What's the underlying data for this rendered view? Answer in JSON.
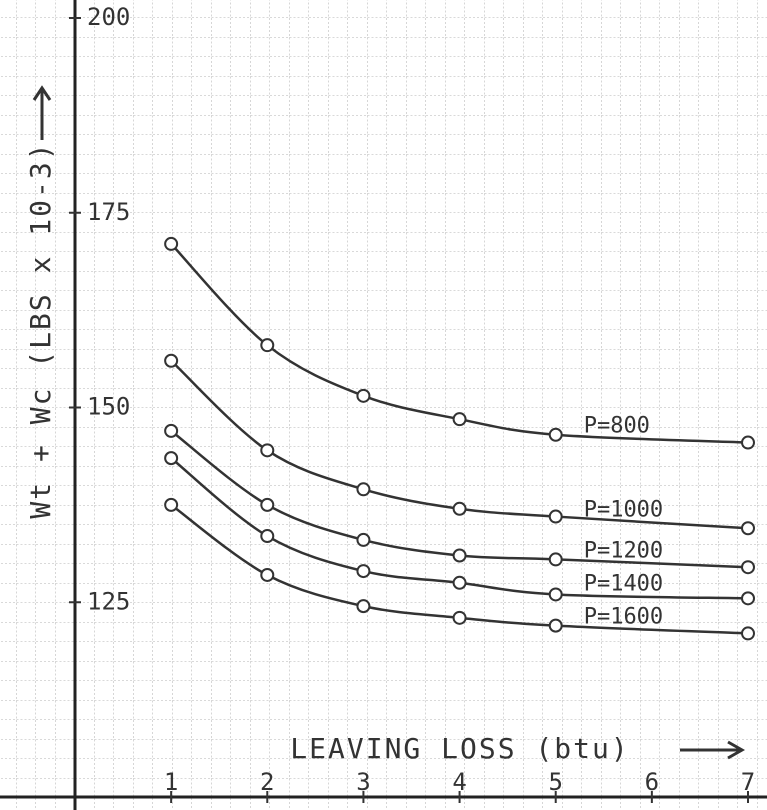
{
  "chart_data": {
    "type": "line",
    "y_label": "Wt + Wc  (LBS x 10-3)",
    "x_label": "LEAVING LOSS  (btu)",
    "x": [
      1,
      2,
      3,
      4,
      5,
      7
    ],
    "series": [
      {
        "name": "P=800",
        "color": "#333333",
        "values": [
          171,
          158,
          151.5,
          148.5,
          146.5,
          145.5
        ]
      },
      {
        "name": "P=1000",
        "color": "#333333",
        "values": [
          156,
          144.5,
          139.5,
          137,
          136,
          134.5
        ]
      },
      {
        "name": "P=1200",
        "color": "#333333",
        "values": [
          147,
          137.5,
          133,
          131,
          130.5,
          129.5
        ]
      },
      {
        "name": "P=1400",
        "color": "#333333",
        "values": [
          143.5,
          133.5,
          129,
          127.5,
          126,
          125.5
        ]
      },
      {
        "name": "P=1600",
        "color": "#333333",
        "values": [
          137.5,
          128.5,
          124.5,
          123,
          122,
          121
        ]
      }
    ],
    "xlim": [
      0,
      7
    ],
    "xticks": [
      1,
      2,
      3,
      4,
      5,
      6,
      7
    ],
    "ylim": [
      100,
      200
    ],
    "yticks": [
      125,
      150,
      175,
      200
    ],
    "grid": true
  }
}
